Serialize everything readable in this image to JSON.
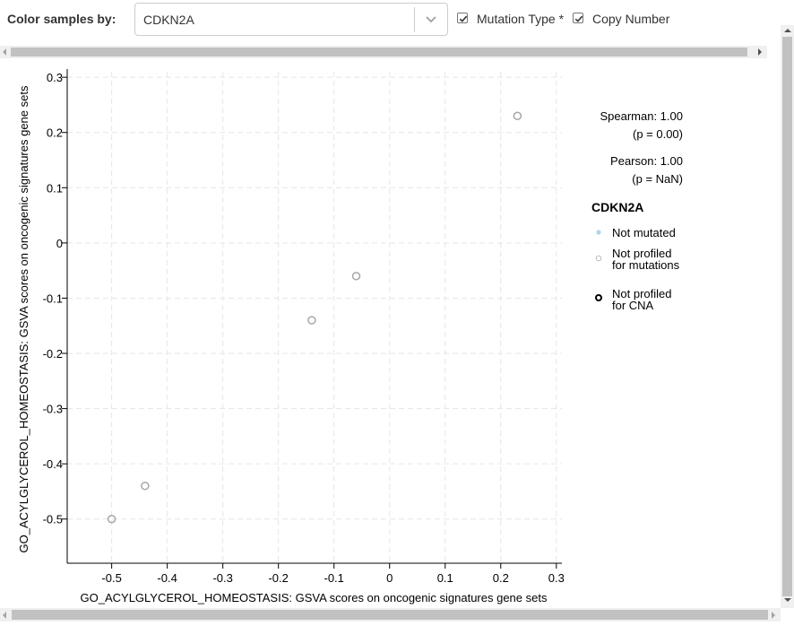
{
  "toolbar": {
    "color_by_label": "Color samples by:",
    "gene_value": "CDKN2A",
    "mutation_type_label": "Mutation Type *",
    "mutation_type_checked": true,
    "copy_number_label": "Copy Number",
    "copy_number_checked": true
  },
  "stats": {
    "spearman": "Spearman: 1.00",
    "spearman_p": "(p = 0.00)",
    "pearson": "Pearson: 1.00",
    "pearson_p": "(p = NaN)"
  },
  "legend": {
    "title": "CDKN2A",
    "items": [
      {
        "line1": "Not mutated",
        "line2": "",
        "symbol": "filled-dot",
        "color": "#add8e6"
      },
      {
        "line1": "Not profiled",
        "line2": "for mutations",
        "symbol": "hollow-circle",
        "color": "#bebebe"
      },
      {
        "line1": "Not profiled",
        "line2": "for CNA",
        "symbol": "hollow-circle-thick",
        "color": "#000000"
      }
    ]
  },
  "chart_data": {
    "type": "scatter",
    "xlabel": "GO_ACYLGLYCEROL_HOMEOSTASIS: GSVA scores on oncogenic signatures gene sets",
    "ylabel": "GO_ACYLGLYCEROL_HOMEOSTASIS: GSVA scores on oncogenic signatures gene sets",
    "xlim": [
      -0.58,
      0.31
    ],
    "ylim": [
      -0.58,
      0.31
    ],
    "x_ticks": [
      -0.5,
      -0.4,
      -0.3,
      -0.2,
      -0.1,
      0,
      0.1,
      0.2,
      0.3
    ],
    "x_tick_labels": [
      "-0.5",
      "-0.4",
      "-0.3",
      "-0.2",
      "-0.1",
      "0",
      "0.1",
      "0.2",
      "0.3"
    ],
    "y_ticks": [
      0.3,
      0.2,
      0.1,
      0,
      -0.1,
      -0.2,
      -0.3,
      -0.4,
      -0.5
    ],
    "y_tick_labels": [
      "0.3",
      "0.2",
      "0.1",
      "0",
      "-0.1",
      "-0.2",
      "-0.3",
      "-0.4",
      "-0.5"
    ],
    "grid": true,
    "points": [
      {
        "x": 0.23,
        "y": 0.23
      },
      {
        "x": -0.06,
        "y": -0.06
      },
      {
        "x": -0.14,
        "y": -0.14
      },
      {
        "x": -0.44,
        "y": -0.44
      },
      {
        "x": -0.5,
        "y": -0.5
      }
    ],
    "point_color": "#a6a6a6"
  }
}
